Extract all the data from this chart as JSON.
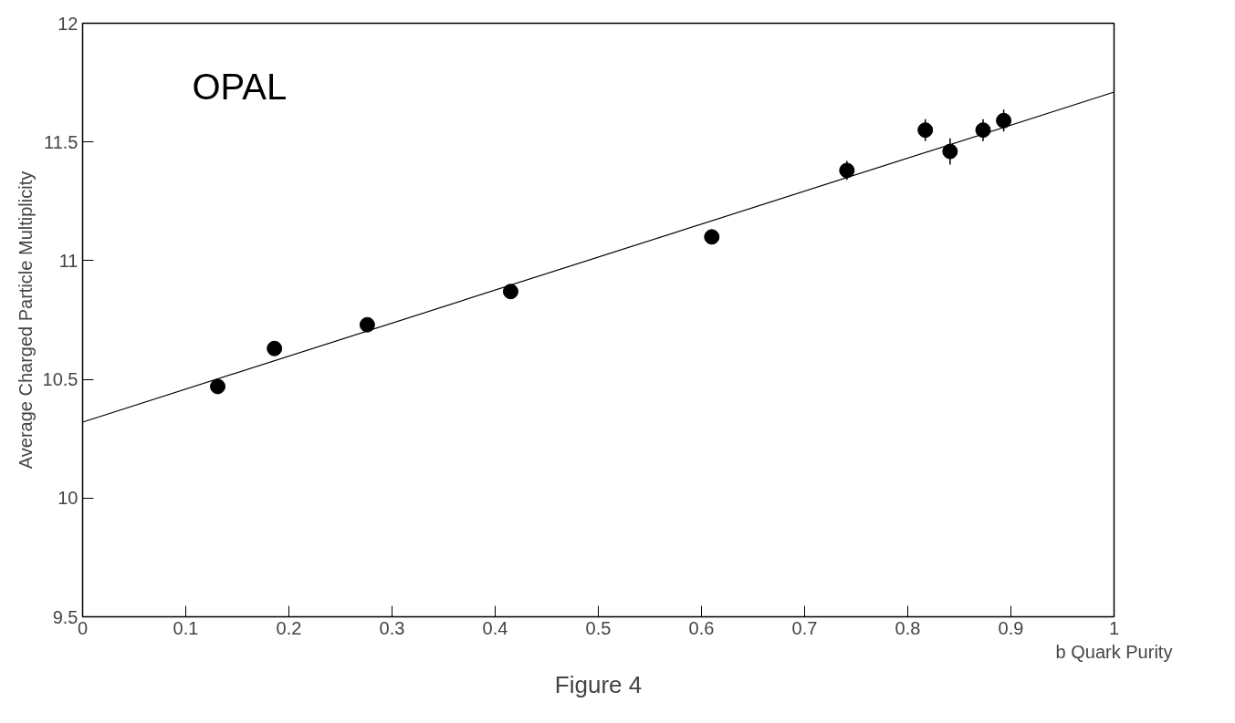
{
  "chart_data": {
    "type": "scatter",
    "xlabel": "b Quark Purity",
    "ylabel": "Average Charged Particle Multiplicity",
    "xlim": [
      0,
      1
    ],
    "ylim": [
      9.5,
      12
    ],
    "xticks": [
      0,
      0.1,
      0.2,
      0.3,
      0.4,
      0.5,
      0.6,
      0.7,
      0.8,
      0.9,
      1
    ],
    "yticks": [
      9.5,
      10,
      10.5,
      11,
      11.5,
      12
    ],
    "grid": false,
    "series": [
      {
        "color": "#000000",
        "marker": "circle",
        "x": [
          0.131,
          0.186,
          0.276,
          0.415,
          0.61,
          0.741,
          0.817,
          0.841,
          0.873,
          0.893
        ],
        "values": [
          10.47,
          10.63,
          10.73,
          10.87,
          11.1,
          11.38,
          11.55,
          11.46,
          11.55,
          11.59
        ],
        "errors": [
          null,
          null,
          null,
          null,
          null,
          0.04,
          0.046,
          0.055,
          0.046,
          0.046
        ]
      },
      {
        "type": "line",
        "color": "#000000",
        "x": [
          0,
          1
        ],
        "values": [
          10.32,
          11.71
        ],
        "line_style": "solid"
      }
    ],
    "annotations": [
      "OPAL",
      "Figure 4"
    ]
  }
}
